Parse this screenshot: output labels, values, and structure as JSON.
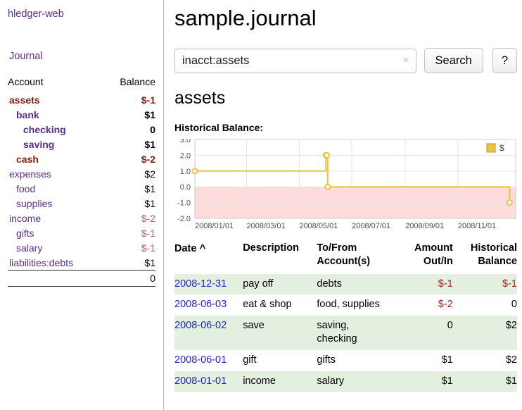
{
  "app": {
    "title": "hledger-web",
    "journal_link": "Journal"
  },
  "header": {
    "title": "sample.journal"
  },
  "search": {
    "value": "inacct:assets",
    "placeholder": "",
    "clear_icon": "×",
    "button_label": "Search",
    "help_label": "?"
  },
  "main": {
    "account_title": "assets"
  },
  "sidebar": {
    "header": {
      "account": "Account",
      "balance": "Balance"
    },
    "accounts": [
      {
        "name": "assets",
        "indent": 1,
        "balance": "$-1",
        "bold": true,
        "name_class": "neg-dark",
        "balance_class": "neg-dark"
      },
      {
        "name": "bank",
        "indent": 2,
        "balance": "$1",
        "bold": true,
        "name_class": "",
        "balance_class": ""
      },
      {
        "name": "checking",
        "indent": 3,
        "balance": "0",
        "bold": true,
        "name_class": "",
        "balance_class": ""
      },
      {
        "name": "saving",
        "indent": 3,
        "balance": "$1",
        "bold": true,
        "name_class": "",
        "balance_class": ""
      },
      {
        "name": "cash",
        "indent": 2,
        "balance": "$-2",
        "bold": true,
        "name_class": "neg-dark",
        "balance_class": "neg-dark"
      },
      {
        "name": "expenses",
        "indent": 1,
        "balance": "$2",
        "bold": false,
        "name_class": "",
        "balance_class": ""
      },
      {
        "name": "food",
        "indent": 2,
        "balance": "$1",
        "bold": false,
        "name_class": "",
        "balance_class": ""
      },
      {
        "name": "supplies",
        "indent": 2,
        "balance": "$1",
        "bold": false,
        "name_class": "",
        "balance_class": ""
      },
      {
        "name": "income",
        "indent": 1,
        "balance": "$-2",
        "bold": false,
        "name_class": "",
        "balance_class": "neg-light"
      },
      {
        "name": "gifts",
        "indent": 2,
        "balance": "$-1",
        "bold": false,
        "name_class": "",
        "balance_class": "neg-light"
      },
      {
        "name": "salary",
        "indent": 2,
        "balance": "$-1",
        "bold": false,
        "name_class": "",
        "balance_class": "neg-light"
      },
      {
        "name": "liabilities:debts",
        "indent": 1,
        "balance": "$1",
        "bold": false,
        "name_class": "",
        "balance_class": ""
      }
    ],
    "total": "0"
  },
  "chart_data": {
    "type": "line",
    "title": "Historical Balance:",
    "legend": {
      "position": "top-right",
      "label": "$"
    },
    "series": [
      {
        "name": "$",
        "color": "#edc240",
        "step": true,
        "points": [
          {
            "date": "2008-01-01",
            "day": 0,
            "value": 1
          },
          {
            "date": "2008-06-01",
            "day": 152,
            "value": 2
          },
          {
            "date": "2008-06-02",
            "day": 153,
            "value": 2
          },
          {
            "date": "2008-06-03",
            "day": 154,
            "value": 0
          },
          {
            "date": "2008-12-31",
            "day": 365,
            "value": -1
          }
        ]
      }
    ],
    "x_axis": {
      "range_days": [
        0,
        372
      ],
      "ticks": [
        {
          "day": 0,
          "label": "2008/01/01"
        },
        {
          "day": 60,
          "label": "2008/03/01"
        },
        {
          "day": 121,
          "label": "2008/05/01"
        },
        {
          "day": 182,
          "label": "2008/07/01"
        },
        {
          "day": 244,
          "label": "2008/09/01"
        },
        {
          "day": 305,
          "label": "2008/11/01"
        }
      ]
    },
    "y_axis": {
      "range": [
        -2,
        3
      ],
      "ticks": [
        3,
        2,
        1,
        0,
        -1,
        -2
      ],
      "tick_labels": [
        "3.0",
        "2.0",
        "1.0",
        "0.0",
        "-1.0",
        "-2.0"
      ]
    },
    "grid": true,
    "negative_region_color": "#ffdcdc",
    "grid_color": "#e6e6e6",
    "border_color": "#cccccc",
    "label_color": "#4d4d4d"
  },
  "register": {
    "columns": [
      {
        "id": "date",
        "lines": [
          "Date"
        ],
        "align": "left",
        "sort": "^"
      },
      {
        "id": "description",
        "lines": [
          "Description"
        ],
        "align": "left"
      },
      {
        "id": "tofrom",
        "lines": [
          "To/From",
          "Account(s)"
        ],
        "align": "left"
      },
      {
        "id": "amount",
        "lines": [
          "Amount",
          "Out/In"
        ],
        "align": "right"
      },
      {
        "id": "balance",
        "lines": [
          "Historical",
          "Balance"
        ],
        "align": "right"
      }
    ],
    "rows": [
      {
        "date": "2008-12-31",
        "description": "pay off",
        "accounts_lines": [
          "debts"
        ],
        "amount": "$-1",
        "amount_negative": true,
        "balance": "$-1",
        "balance_negative": true,
        "shaded": true
      },
      {
        "date": "2008-06-03",
        "description": "eat & shop",
        "accounts_lines": [
          "food, supplies"
        ],
        "amount": "$-2",
        "amount_negative": true,
        "balance": "0",
        "balance_negative": false,
        "shaded": false
      },
      {
        "date": "2008-06-02",
        "description": "save",
        "accounts_lines": [
          "saving,",
          "checking"
        ],
        "amount": "0",
        "amount_negative": false,
        "balance": "$2",
        "balance_negative": false,
        "shaded": true
      },
      {
        "date": "2008-06-01",
        "description": "gift",
        "accounts_lines": [
          "gifts"
        ],
        "amount": "$1",
        "amount_negative": false,
        "balance": "$2",
        "balance_negative": false,
        "shaded": false
      },
      {
        "date": "2008-01-01",
        "description": "income",
        "accounts_lines": [
          "salary"
        ],
        "amount": "$1",
        "amount_negative": false,
        "balance": "$1",
        "balance_negative": false,
        "shaded": true
      }
    ]
  },
  "colors": {
    "link_purple": "#5b2d90",
    "date_link_blue": "#2323cc",
    "negative_dark": "#7e1f12",
    "negative_light": "#b85f5f",
    "negative_table": "#a3271b",
    "row_stripe_green": "#e3efdf",
    "chart_line_gold": "#edc240",
    "chart_negative_pink": "#ffdcdc"
  }
}
